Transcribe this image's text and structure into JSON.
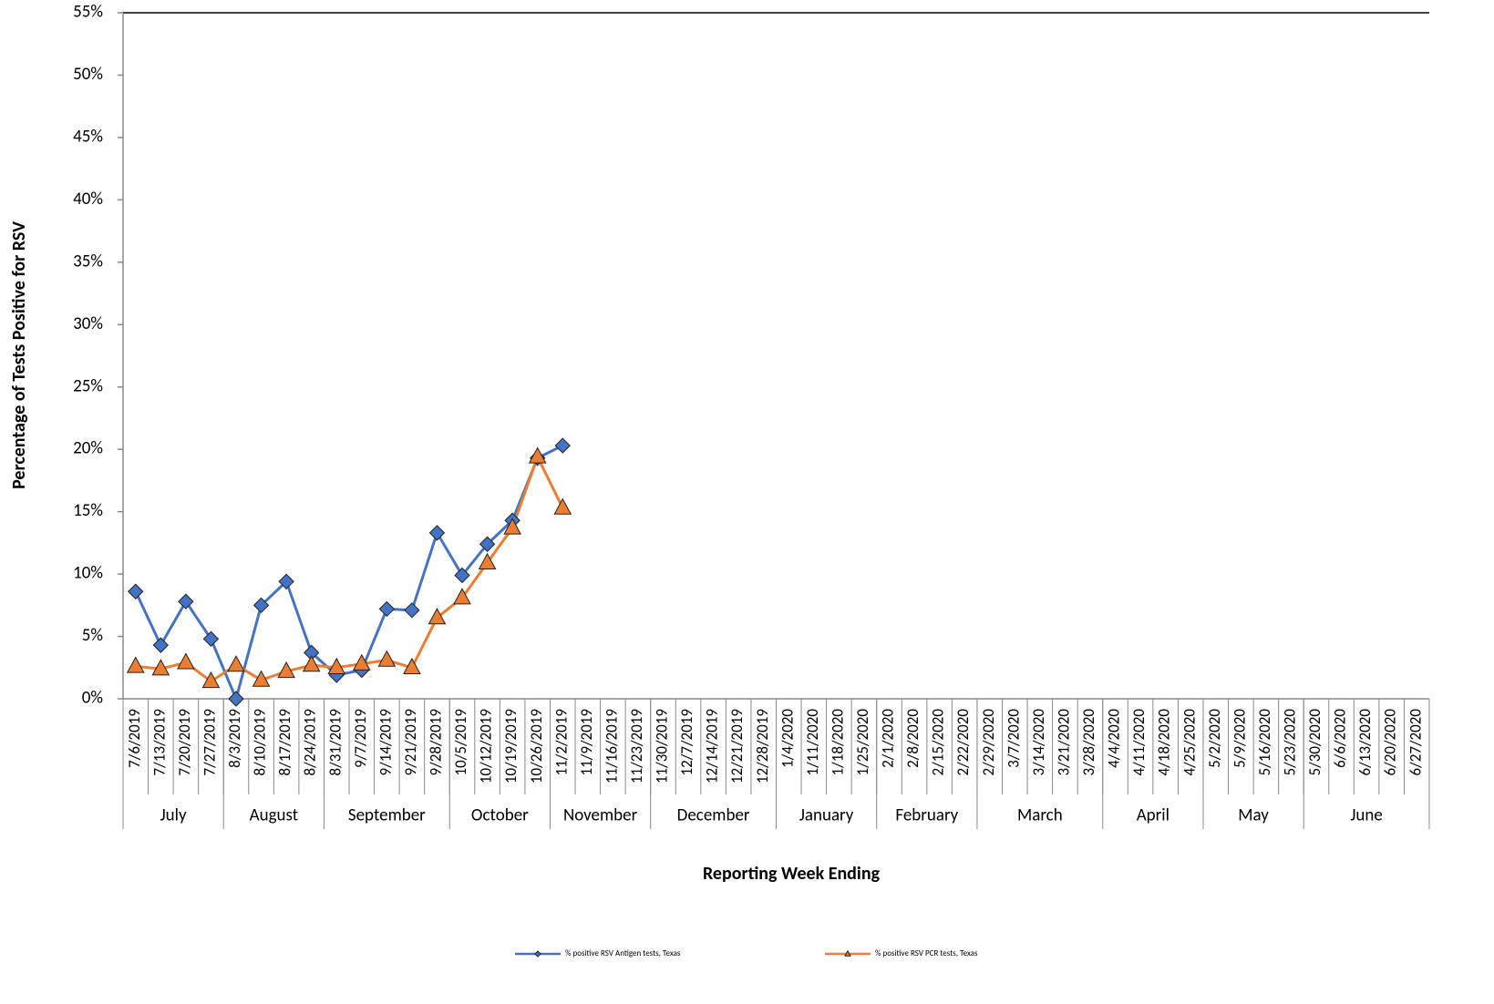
{
  "chart_data": {
    "type": "line",
    "x_title": "Reporting Week Ending",
    "y_title": "Percentage of Tests Positive for RSV",
    "categories": [
      "7/6/2019",
      "7/13/2019",
      "7/20/2019",
      "7/27/2019",
      "8/3/2019",
      "8/10/2019",
      "8/17/2019",
      "8/24/2019",
      "8/31/2019",
      "9/7/2019",
      "9/14/2019",
      "9/21/2019",
      "9/28/2019",
      "10/5/2019",
      "10/12/2019",
      "10/19/2019",
      "10/26/2019",
      "11/2/2019",
      "11/9/2019",
      "11/16/2019",
      "11/23/2019",
      "11/30/2019",
      "12/7/2019",
      "12/14/2019",
      "12/21/2019",
      "12/28/2019",
      "1/4/2020",
      "1/11/2020",
      "1/18/2020",
      "1/25/2020",
      "2/1/2020",
      "2/8/2020",
      "2/15/2020",
      "2/22/2020",
      "2/29/2020",
      "3/7/2020",
      "3/14/2020",
      "3/21/2020",
      "3/28/2020",
      "4/4/2020",
      "4/11/2020",
      "4/18/2020",
      "4/25/2020",
      "5/2/2020",
      "5/9/2020",
      "5/16/2020",
      "5/23/2020",
      "5/30/2020",
      "6/6/2020",
      "6/13/2020",
      "6/20/2020",
      "6/27/2020"
    ],
    "groups": [
      {
        "name": "July",
        "count": 4
      },
      {
        "name": "August",
        "count": 4
      },
      {
        "name": "September",
        "count": 5
      },
      {
        "name": "October",
        "count": 4
      },
      {
        "name": "November",
        "count": 4
      },
      {
        "name": "December",
        "count": 5
      },
      {
        "name": "January",
        "count": 4
      },
      {
        "name": "February",
        "count": 4
      },
      {
        "name": "March",
        "count": 5
      },
      {
        "name": "April",
        "count": 4
      },
      {
        "name": "May",
        "count": 4
      },
      {
        "name": "June",
        "count": 5
      }
    ],
    "series": [
      {
        "name": "% positive RSV Antigen tests, Texas",
        "color": "#4472c4",
        "marker": "diamond",
        "values": [
          8.6,
          4.3,
          7.8,
          4.8,
          0,
          7.5,
          9.4,
          3.7,
          1.9,
          2.3,
          7.2,
          7.1,
          13.3,
          9.9,
          12.4,
          14.3,
          19.3,
          20.3,
          null,
          null,
          null,
          null,
          null,
          null,
          null,
          null,
          null,
          null,
          null,
          null,
          null,
          null,
          null,
          null,
          null,
          null,
          null,
          null,
          null,
          null,
          null,
          null,
          null,
          null,
          null,
          null,
          null,
          null,
          null,
          null,
          null,
          null
        ]
      },
      {
        "name": "% positive RSV PCR tests, Texas",
        "color": "#ed7d31",
        "marker": "triangle",
        "values": [
          2.6,
          2.4,
          2.9,
          1.4,
          2.7,
          1.5,
          2.2,
          2.7,
          2.5,
          2.8,
          3.1,
          2.5,
          6.5,
          8.1,
          10.9,
          13.7,
          19.4,
          15.3,
          null,
          null,
          null,
          null,
          null,
          null,
          null,
          null,
          null,
          null,
          null,
          null,
          null,
          null,
          null,
          null,
          null,
          null,
          null,
          null,
          null,
          null,
          null,
          null,
          null,
          null,
          null,
          null,
          null,
          null,
          null,
          null,
          null,
          null
        ]
      }
    ],
    "ylim": [
      0,
      55
    ],
    "yticks": [
      {
        "value": 0,
        "label": "0%"
      },
      {
        "value": 5,
        "label": "5%"
      },
      {
        "value": 10,
        "label": "10%"
      },
      {
        "value": 15,
        "label": "15%"
      },
      {
        "value": 20,
        "label": "20%"
      },
      {
        "value": 25,
        "label": "25%"
      },
      {
        "value": 30,
        "label": "30%"
      },
      {
        "value": 35,
        "label": "35%"
      },
      {
        "value": 40,
        "label": "40%"
      },
      {
        "value": 45,
        "label": "45%"
      },
      {
        "value": 50,
        "label": "50%"
      },
      {
        "value": 55,
        "label": "55%"
      }
    ],
    "grid": false
  }
}
